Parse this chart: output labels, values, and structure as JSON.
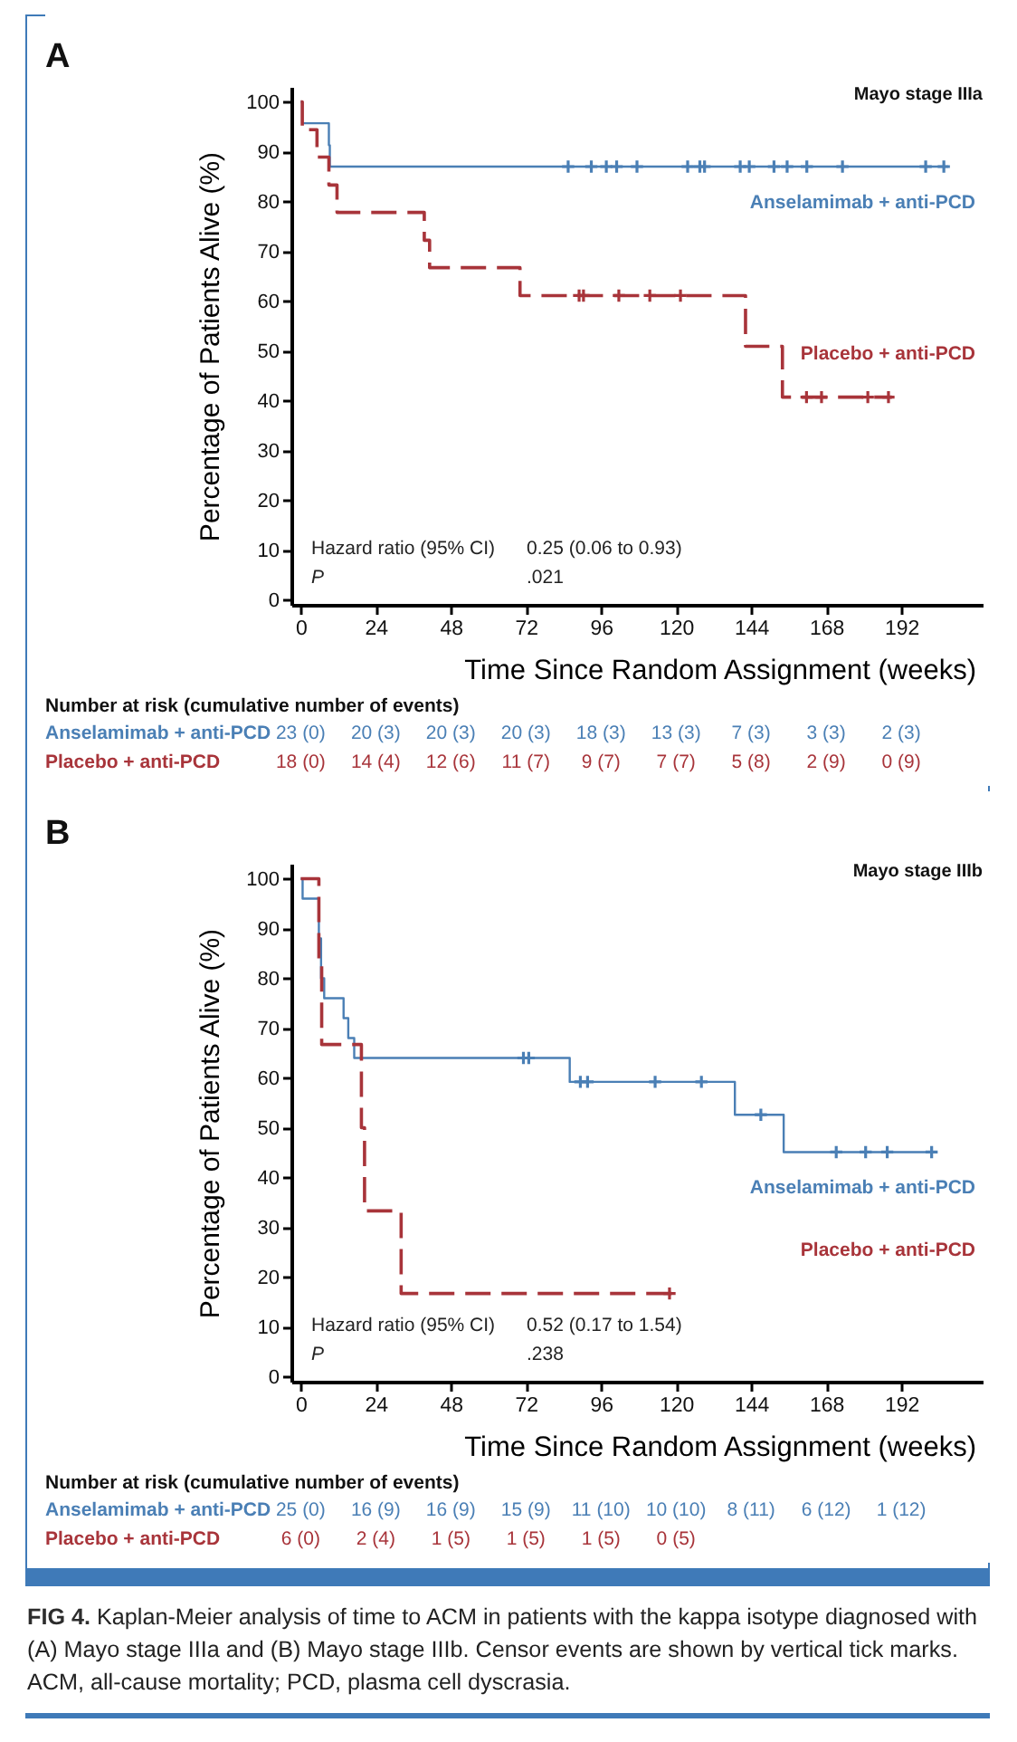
{
  "chart_data": [
    {
      "type": "line",
      "title": "A",
      "subtitle": "Mayo stage IIIa",
      "xlabel": "Time Since Random Assignment (weeks)",
      "ylabel": "Percentage of Patients Alive (%)",
      "xlim": [
        -3,
        218
      ],
      "ylim": [
        -1,
        103
      ],
      "xticks": [
        0,
        24,
        48,
        72,
        96,
        120,
        144,
        168,
        192
      ],
      "yticks": [
        0,
        10,
        20,
        30,
        40,
        50,
        60,
        70,
        80,
        90,
        100
      ],
      "series": [
        {
          "name": "Anselamimab + anti-PCD",
          "type": "step",
          "color": "#4a7fb5",
          "line_style": "solid",
          "marker": "none",
          "x": [
            0,
            0.5,
            9,
            9.3,
            207
          ],
          "values": [
            100,
            95.7,
            91.3,
            87,
            87
          ]
        },
        {
          "type": "scatter",
          "color": "#4a7fb5",
          "marker": "cross",
          "x": [
            85.5,
            92.9,
            97.7,
            101,
            107.5,
            123.7,
            127.6,
            129.1,
            140.5,
            143.4,
            151.3,
            155.5,
            161.8,
            173.2,
            199.8,
            205.6
          ],
          "values": [
            87,
            87,
            87,
            87,
            87,
            87,
            87,
            87,
            87,
            87,
            87,
            87,
            87,
            87,
            87,
            87
          ]
        },
        {
          "name": "Placebo + anti-PCD",
          "type": "step",
          "color": "#a8343a",
          "line_style": "dashed",
          "marker": "none",
          "x": [
            0,
            0.5,
            5.2,
            9,
            11.6,
            39.5,
            41.2,
            70.1,
            142.2,
            154,
            189
          ],
          "values": [
            100,
            94.4,
            88.9,
            83.3,
            77.8,
            72.2,
            66.7,
            61.1,
            50.9,
            40.7,
            40.7
          ]
        },
        {
          "type": "scatter",
          "color": "#a8343a",
          "marker": "cross",
          "x": [
            89,
            90.4,
            101.7,
            111.6,
            121.4,
            161.7,
            166.5,
            181.3,
            187.9
          ],
          "values": [
            61.1,
            61.1,
            61.1,
            61.1,
            61.1,
            40.7,
            40.7,
            40.7,
            40.7
          ]
        }
      ],
      "annotations": [
        "Hazard ratio (95% CI)",
        "0.25 (0.06 to 0.93)",
        "P",
        ".021",
        "Number at risk (cumulative number of events)",
        "Anselamimab + anti-PCD",
        "23 (0)",
        "20 (3)",
        "20 (3)",
        "20 (3)",
        "18 (3)",
        "13 (3)",
        "7 (3)",
        "3 (3)",
        "2 (3)",
        "Placebo + anti-PCD",
        "18 (0)",
        "14 (4)",
        "12 (6)",
        "11 (7)",
        "9 (7)",
        "7 (7)",
        "5 (8)",
        "2 (9)",
        "0 (9)"
      ]
    },
    {
      "type": "line",
      "title": "B",
      "subtitle": "Mayo stage IIIb",
      "xlabel": "Time Since Random Assignment (weeks)",
      "ylabel": "Percentage of Patients Alive (%)",
      "xlim": [
        -3,
        218
      ],
      "ylim": [
        -1,
        103
      ],
      "xticks": [
        0,
        24,
        48,
        72,
        96,
        120,
        144,
        168,
        192
      ],
      "yticks": [
        0,
        10,
        20,
        30,
        40,
        50,
        60,
        70,
        80,
        90,
        100
      ],
      "series": [
        {
          "name": "Anselamimab + anti-PCD",
          "type": "step",
          "color": "#4a7fb5",
          "line_style": "solid",
          "marker": "none",
          "x": [
            0,
            0.6,
            5.8,
            6.5,
            7.5,
            13.7,
            15.2,
            17.1,
            86,
            138.8,
            154.4,
            202.3
          ],
          "values": [
            100,
            96,
            88,
            80,
            76,
            72,
            68,
            64,
            59.2,
            52.6,
            45.1,
            45.1
          ]
        },
        {
          "type": "scatter",
          "color": "#4a7fb5",
          "marker": "cross",
          "x": [
            71.2,
            72.9,
            89.4,
            91.7,
            113.3,
            128.1,
            147.1,
            171.2,
            180.6,
            187.5,
            201.7
          ],
          "values": [
            64,
            64,
            59.2,
            59.2,
            59.2,
            59.2,
            52.6,
            45.1,
            45.1,
            45.1,
            45.1
          ]
        },
        {
          "name": "Placebo + anti-PCD",
          "type": "step",
          "color": "#a8343a",
          "line_style": "dashed",
          "marker": "none",
          "x": [
            0,
            5.8,
            6.7,
            19.4,
            20.4,
            32.1,
            118.7
          ],
          "values": [
            100,
            83.3,
            66.7,
            50,
            33.3,
            16.7,
            16.7
          ]
        },
        {
          "type": "scatter",
          "color": "#a8343a",
          "marker": "cross",
          "x": [
            117.9
          ],
          "values": [
            16.7
          ]
        }
      ],
      "annotations": [
        "Hazard ratio (95% CI)",
        "0.52 (0.17 to 1.54)",
        "P",
        ".238",
        "Number at risk (cumulative number of events)",
        "Anselamimab + anti-PCD",
        "25 (0)",
        "16 (9)",
        "16 (9)",
        "15 (9)",
        "11 (10)",
        "10 (10)",
        "8 (11)",
        "6 (12)",
        "1 (12)",
        "Placebo + anti-PCD",
        "6 (0)",
        "2 (4)",
        "1 (5)",
        "1 (5)",
        "1 (5)",
        "0 (5)"
      ]
    },
    {
      "type": "other",
      "annotations": [
        "FIG 4.",
        "Kaplan-Meier analysis of time to ACM in patients with the kappa isotype diagnosed with (A) Mayo stage IIIa and (B) Mayo stage IIIb. Censor events are shown by vertical tick marks. ACM, all-cause mortality; PCD, plasma cell dyscrasia."
      ]
    }
  ]
}
